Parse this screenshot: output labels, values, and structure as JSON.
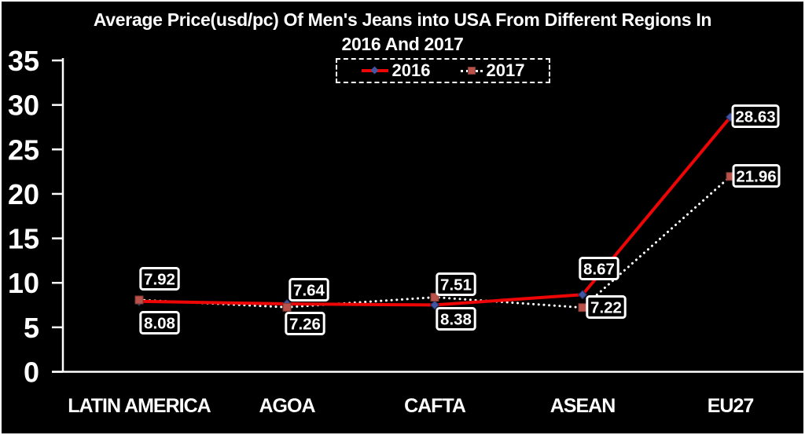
{
  "window": {
    "background": "#000000",
    "border_color": "#ffffff",
    "text_color": "#ffffff"
  },
  "chart_data": {
    "type": "line",
    "title": "Average Price(usd/pc) Of Men's Jeans into USA From Different Regions In 2016 And 2017",
    "title_lines": [
      "Average Price(usd/pc) Of Men's Jeans into USA From Different Regions In",
      "2016 And 2017"
    ],
    "categories": [
      "LATIN AMERICA",
      "AGOA",
      "CAFTA",
      "ASEAN",
      "EU27"
    ],
    "series": [
      {
        "name": "2016",
        "values": [
          7.92,
          7.64,
          7.51,
          8.67,
          28.63
        ],
        "line_color": "#ee0505",
        "line_style": "solid",
        "marker": "diamond",
        "marker_color": "#4156a2"
      },
      {
        "name": "2017",
        "values": [
          8.08,
          7.26,
          8.38,
          7.22,
          21.96
        ],
        "line_color": "#ffffff",
        "line_style": "dotted",
        "marker": "square",
        "marker_color": "#b9524b"
      }
    ],
    "xlabel": "",
    "ylabel": "",
    "ylim": [
      0,
      35
    ],
    "yticks": [
      0,
      5,
      10,
      15,
      20,
      25,
      30,
      35
    ],
    "grid": false,
    "legend_position": "top-center",
    "legend_border": "dashed",
    "data_labels_shown": true,
    "data_label_format": "0.00",
    "axis_color": "#ffffff",
    "background": "#000000"
  }
}
